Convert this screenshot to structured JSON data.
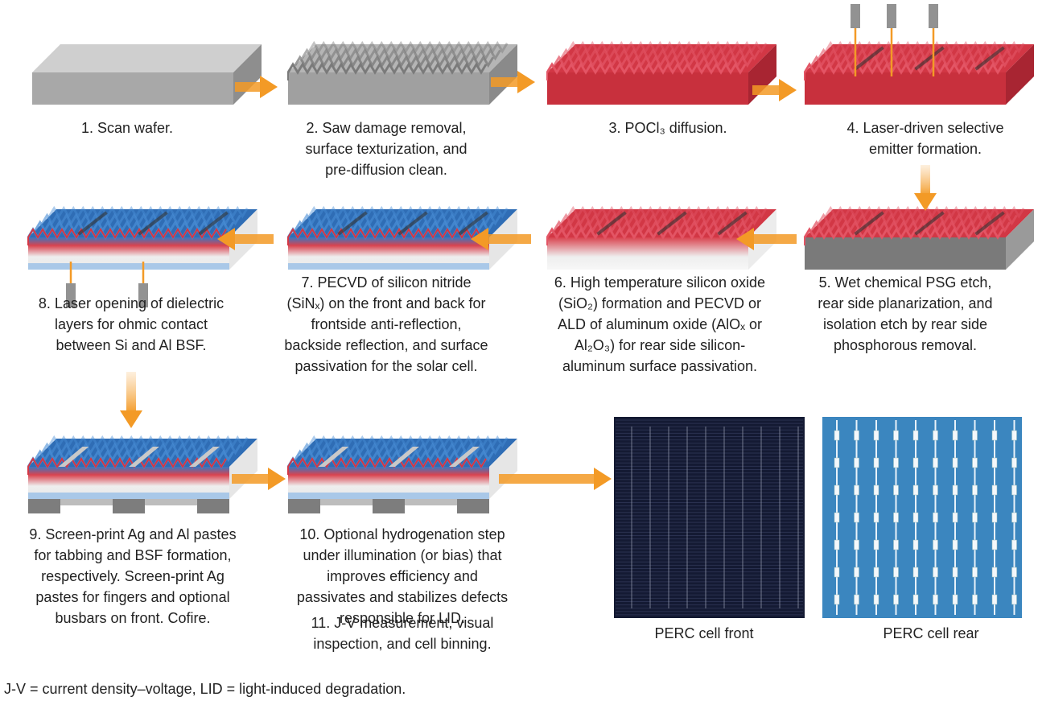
{
  "steps": [
    {
      "lines": [
        "1. Scan wafer."
      ]
    },
    {
      "lines": [
        "2. Saw damage removal,",
        "surface texturization, and",
        "pre-diffusion clean."
      ]
    },
    {
      "lines": [
        "3. POCl₃ diffusion."
      ]
    },
    {
      "lines": [
        "4. Laser-driven selective",
        "emitter formation."
      ]
    },
    {
      "lines": [
        "5. Wet chemical PSG etch,",
        "rear side planarization, and",
        "isolation etch by rear side",
        "phosphorous removal."
      ]
    },
    {
      "lines": [
        "6. High temperature silicon oxide",
        "(SiO₂) formation and PECVD or",
        "ALD of aluminum oxide (AlOₓ or",
        "Al₂O₃) for rear side silicon-",
        "aluminum surface passivation."
      ]
    },
    {
      "lines": [
        "7. PECVD of silicon nitride",
        "(SiNₓ) on the front and back for",
        "frontside anti-reflection,",
        "backside reflection, and surface",
        "passivation for the solar cell."
      ]
    },
    {
      "lines": [
        "8. Laser opening of dielectric",
        "layers for ohmic contact",
        "between Si and Al BSF."
      ]
    },
    {
      "lines": [
        "9. Screen-print Ag and Al pastes",
        "for tabbing and BSF formation,",
        "respectively.  Screen-print Ag",
        "pastes for fingers and optional",
        "busbars on front.  Cofire."
      ]
    },
    {
      "lines": [
        "10. Optional hydrogenation step",
        "under illumination (or bias) that",
        "improves efficiency and",
        "passivates and stabilizes defects",
        "responsible for LID."
      ]
    },
    {
      "lines": [
        "11. J-V measurement, visual",
        "inspection, and cell binning."
      ]
    }
  ],
  "panels": {
    "front": "PERC cell front",
    "rear": "PERC cell rear"
  },
  "footnote": "J-V = current density–voltage, LID = light-induced degradation."
}
